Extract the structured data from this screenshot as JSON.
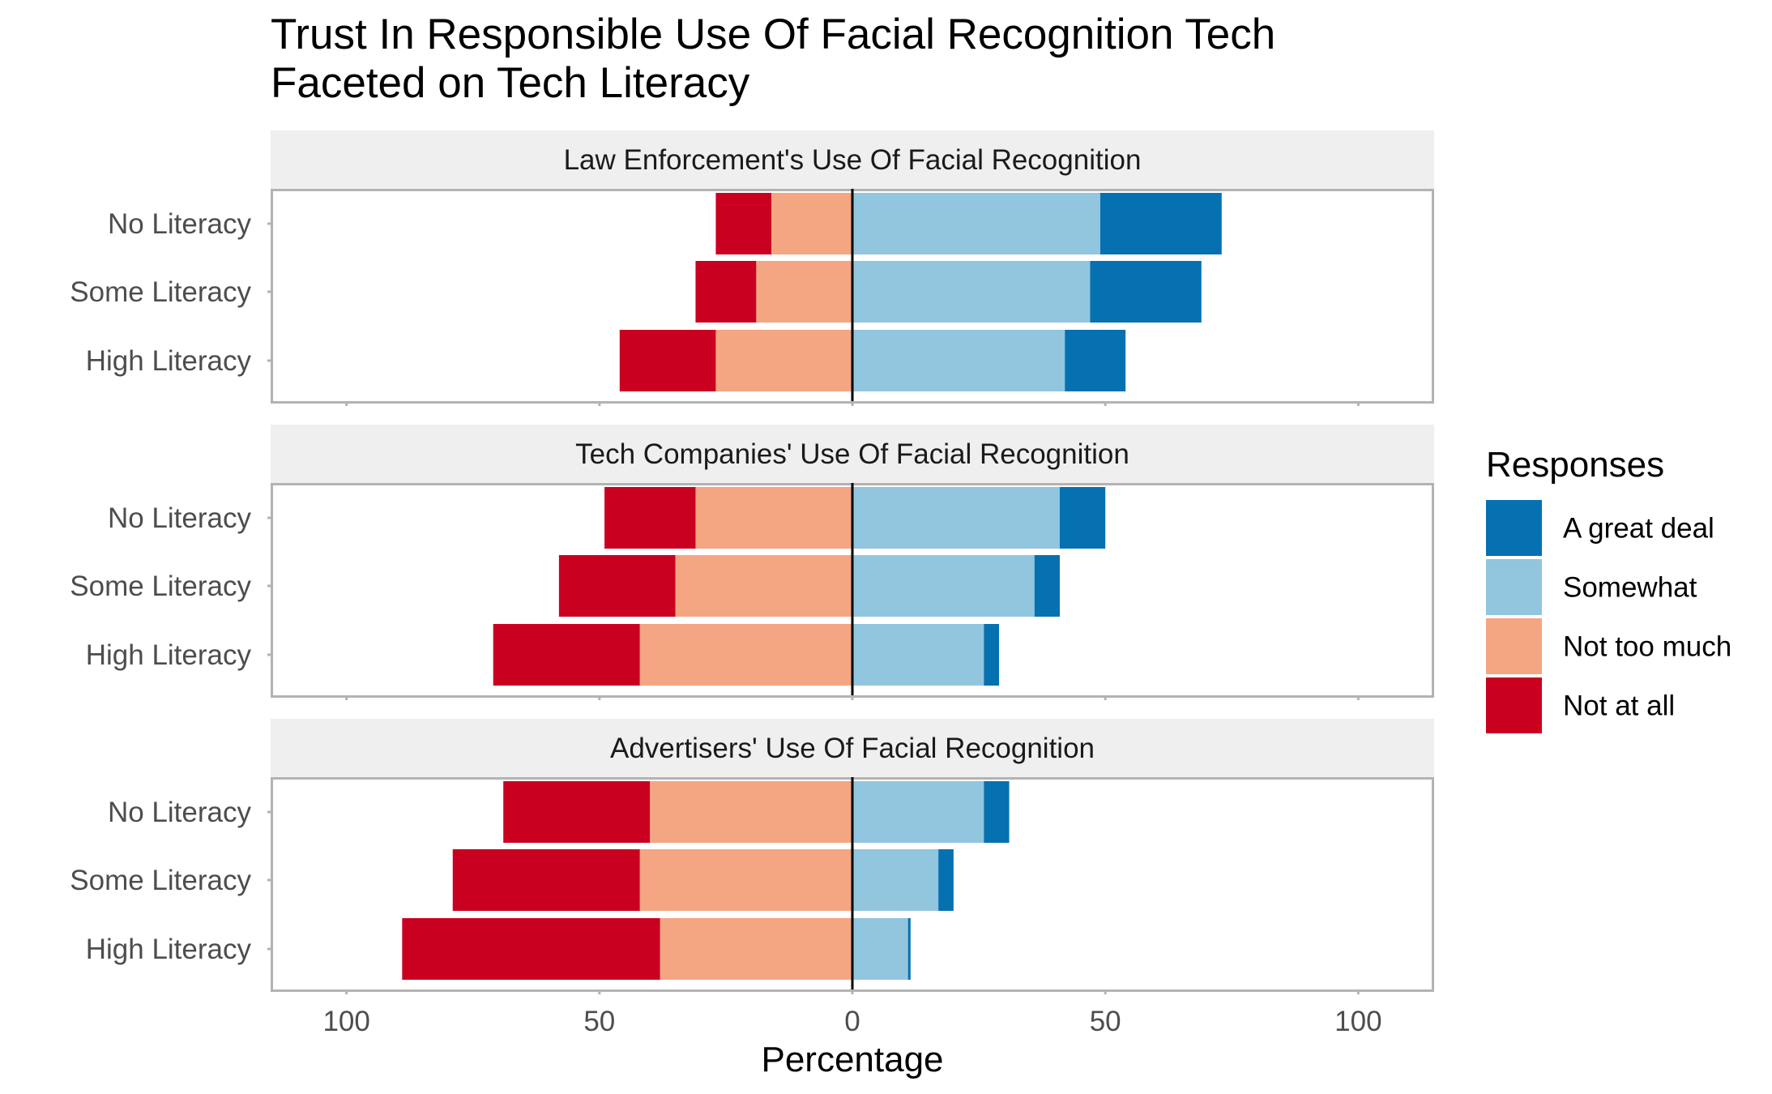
{
  "chart_data": {
    "type": "bar",
    "orientation": "horizontal",
    "layout": "diverging stacked, faceted",
    "title": "Trust In Responsible Use Of Facial Recognition Tech\nFaceted on Tech Literacy",
    "xlabel": "Percentage",
    "ylabel": "",
    "xlim": [
      -115,
      115
    ],
    "x_ticks": [
      -100,
      -50,
      0,
      50,
      100
    ],
    "x_tick_labels": [
      "100",
      "50",
      "0",
      "50",
      "100"
    ],
    "categories": [
      "No Literacy",
      "Some Literacy",
      "High Literacy"
    ],
    "legend": {
      "title": "Responses",
      "position": "right",
      "entries": [
        "A great deal",
        "Somewhat",
        "Not too much",
        "Not at all"
      ]
    },
    "colors": {
      "A great deal": "#0571b0",
      "Somewhat": "#92c5de",
      "Not too much": "#f4a582",
      "Not at all": "#ca0020"
    },
    "facets": [
      {
        "title": "Law Enforcement's Use Of Facial Recognition",
        "series": [
          {
            "name": "Not at all",
            "values": [
              11,
              12,
              19
            ]
          },
          {
            "name": "Not too much",
            "values": [
              16,
              19,
              27
            ]
          },
          {
            "name": "Somewhat",
            "values": [
              49,
              47,
              42
            ]
          },
          {
            "name": "A great deal",
            "values": [
              24,
              22,
              12
            ]
          }
        ]
      },
      {
        "title": "Tech Companies' Use Of Facial Recognition",
        "series": [
          {
            "name": "Not at all",
            "values": [
              18,
              23,
              29
            ]
          },
          {
            "name": "Not too much",
            "values": [
              31,
              35,
              42
            ]
          },
          {
            "name": "Somewhat",
            "values": [
              41,
              36,
              26
            ]
          },
          {
            "name": "A great deal",
            "values": [
              9,
              5,
              3
            ]
          }
        ]
      },
      {
        "title": "Advertisers' Use Of Facial Recognition",
        "series": [
          {
            "name": "Not at all",
            "values": [
              29,
              37,
              51
            ]
          },
          {
            "name": "Not too much",
            "values": [
              40,
              42,
              38
            ]
          },
          {
            "name": "Somewhat",
            "values": [
              26,
              17,
              11
            ]
          },
          {
            "name": "A great deal",
            "values": [
              5,
              3,
              0.5
            ]
          }
        ]
      }
    ]
  }
}
